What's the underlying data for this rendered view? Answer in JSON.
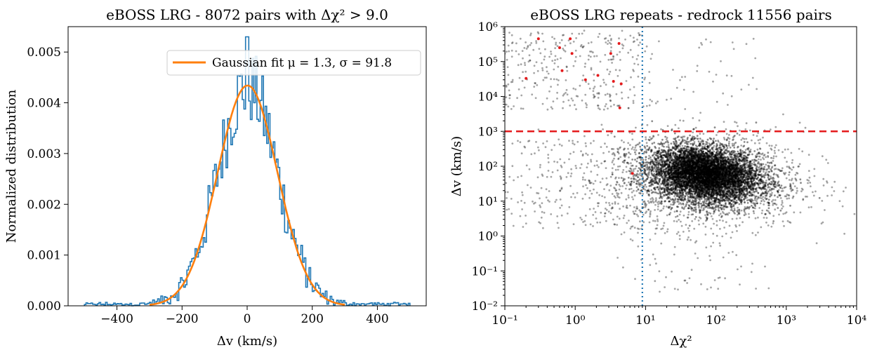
{
  "chart_data": [
    {
      "type": "histogram",
      "title": "eBOSS LRG - 8072 pairs with Δχ² > 9.0",
      "xlabel": "Δv (km/s)",
      "ylabel": "Normalized distribution",
      "xlim": [
        -550,
        550
      ],
      "ylim": [
        0.0,
        0.0055
      ],
      "x_tick_labels": [
        "−400",
        "−200",
        "0",
        "200",
        "400"
      ],
      "x_ticks": [
        -400,
        -200,
        0,
        200,
        400
      ],
      "y_tick_labels": [
        "0.000",
        "0.001",
        "0.002",
        "0.003",
        "0.004",
        "0.005"
      ],
      "y_ticks": [
        0.0,
        0.001,
        0.002,
        0.003,
        0.004,
        0.005
      ],
      "hist_color": "#1f77b4",
      "fit_color": "#ff7f0e",
      "fit": {
        "label": "Gaussian fit μ = 1.3, σ = 91.8",
        "mu": 1.3,
        "sigma": 91.8,
        "peak": 0.00434
      },
      "histogram": {
        "bin_range": [
          -500,
          500
        ],
        "bin_width": 5,
        "peak_value": 0.0053,
        "max_x": 0.0
      },
      "legend_position": "top-right"
    },
    {
      "type": "scatter",
      "title": "eBOSS LRG repeats - redrock 11556 pairs",
      "xlabel": "Δχ²",
      "ylabel": "Δv (km/s)",
      "xscale": "log",
      "yscale": "log",
      "xlim": [
        0.1,
        10000
      ],
      "ylim": [
        0.01,
        1000000
      ],
      "x_tick_labels": [
        "10⁻¹",
        "10⁰",
        "10¹",
        "10²",
        "10³",
        "10⁴"
      ],
      "y_tick_labels": [
        "10⁻²",
        "10⁻¹",
        "10⁰",
        "10¹",
        "10²",
        "10³",
        "10⁴",
        "10⁵",
        "10⁶"
      ],
      "point_color": "#000000",
      "highlight_color": "#e41a1c",
      "hline": {
        "y": 1000,
        "color": "#e41a1c",
        "style": "dashed"
      },
      "vline": {
        "x": 9,
        "color": "#1f77b4",
        "style": "dotted"
      },
      "main_cluster": {
        "x_center": 70,
        "y_center": 60,
        "count": 11556
      },
      "highlighted_points": [
        {
          "x": 0.3,
          "y": 450000
        },
        {
          "x": 0.85,
          "y": 450000
        },
        {
          "x": 0.6,
          "y": 250000
        },
        {
          "x": 0.9,
          "y": 170000
        },
        {
          "x": 4.2,
          "y": 330000
        },
        {
          "x": 3.2,
          "y": 170000
        },
        {
          "x": 0.2,
          "y": 33000
        },
        {
          "x": 0.65,
          "y": 55000
        },
        {
          "x": 1.4,
          "y": 30000
        },
        {
          "x": 2.1,
          "y": 40000
        },
        {
          "x": 3.5,
          "y": 27000
        },
        {
          "x": 4.5,
          "y": 23000
        },
        {
          "x": 4.3,
          "y": 4700
        },
        {
          "x": 6.5,
          "y": 62
        }
      ]
    }
  ]
}
